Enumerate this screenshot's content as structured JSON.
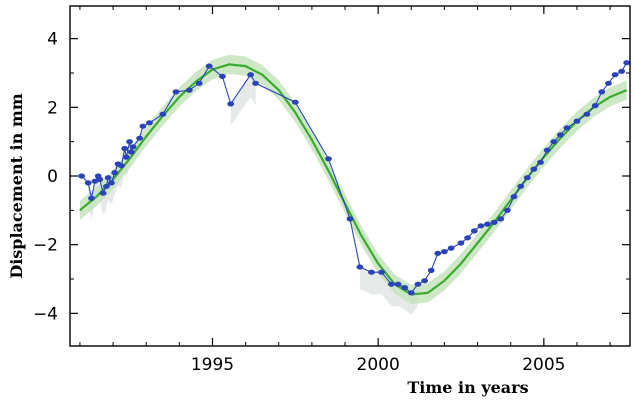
{
  "chart_data": {
    "type": "line",
    "xlabel": "Time in years",
    "ylabel": "Displacement in mm",
    "xlim": [
      1990.7,
      2007.6
    ],
    "ylim": [
      -4.95,
      4.95
    ],
    "x_ticks": [
      1995,
      2000,
      2005
    ],
    "x_tick_labels": [
      "1995",
      "2000",
      "2005"
    ],
    "y_ticks": [
      -4,
      -2,
      0,
      2,
      4
    ],
    "y_tick_labels": [
      "−4",
      "−2",
      "0",
      "2",
      "4"
    ],
    "grid": false,
    "colors": {
      "observed": "#2a44b8",
      "fit": "#3aab2c",
      "band": "#c5e4bd",
      "shadow": "#dfe5e2",
      "frame": "#000000"
    },
    "series": [
      {
        "role": "observed",
        "x": [
          1991.05,
          1991.25,
          1991.35,
          1991.45,
          1991.55,
          1991.6,
          1991.7,
          1991.8,
          1991.85,
          1991.95,
          1992.05,
          1992.15,
          1992.25,
          1992.35,
          1992.4,
          1992.5,
          1992.55,
          1992.6,
          1992.8,
          1992.9,
          1993.1,
          1993.5,
          1993.9,
          1994.3,
          1994.6,
          1994.9,
          1995.3,
          1995.55,
          1996.15,
          1996.3,
          1997.5,
          1998.5,
          1999.15,
          1999.45,
          1999.8,
          2000.1,
          2000.4,
          2000.6,
          2000.8,
          2001.0,
          2001.2,
          2001.4,
          2001.6,
          2001.8,
          2002.0,
          2002.2,
          2002.5,
          2002.7,
          2002.9,
          2003.1,
          2003.3,
          2003.5,
          2003.7,
          2003.9,
          2004.1,
          2004.3,
          2004.5,
          2004.7,
          2004.9,
          2005.1,
          2005.3,
          2005.5,
          2005.7,
          2006.0,
          2006.3,
          2006.55,
          2006.75,
          2006.95,
          2007.15,
          2007.35,
          2007.5
        ],
        "y": [
          0.0,
          -0.2,
          -0.65,
          -0.15,
          0.0,
          -0.1,
          -0.5,
          -0.3,
          -0.05,
          -0.2,
          0.1,
          0.35,
          0.3,
          0.8,
          0.55,
          1.0,
          0.7,
          0.85,
          1.1,
          1.45,
          1.55,
          1.8,
          2.45,
          2.5,
          2.7,
          3.2,
          2.9,
          2.1,
          2.95,
          2.7,
          2.15,
          0.5,
          -1.25,
          -2.65,
          -2.8,
          -2.8,
          -3.15,
          -3.15,
          -3.25,
          -3.4,
          -3.15,
          -3.05,
          -2.75,
          -2.25,
          -2.2,
          -2.1,
          -1.95,
          -1.8,
          -1.6,
          -1.45,
          -1.4,
          -1.35,
          -1.25,
          -1.0,
          -0.6,
          -0.3,
          -0.05,
          0.2,
          0.4,
          0.75,
          1.0,
          1.2,
          1.4,
          1.6,
          1.8,
          2.05,
          2.45,
          2.7,
          2.95,
          3.05,
          3.3
        ]
      },
      {
        "role": "fit",
        "x": [
          1991.0,
          1991.5,
          1992.0,
          1992.5,
          1993.0,
          1993.5,
          1994.0,
          1994.5,
          1995.0,
          1995.5,
          1996.0,
          1996.5,
          1997.0,
          1997.5,
          1998.0,
          1998.5,
          1999.0,
          1999.5,
          2000.0,
          2000.5,
          2001.0,
          2001.5,
          2002.0,
          2002.5,
          2003.0,
          2003.5,
          2004.0,
          2004.5,
          2005.0,
          2005.5,
          2006.0,
          2006.5,
          2007.0,
          2007.5
        ],
        "y": [
          -1.0,
          -0.6,
          -0.1,
          0.5,
          1.15,
          1.75,
          2.3,
          2.75,
          3.1,
          3.25,
          3.2,
          2.95,
          2.5,
          1.85,
          1.05,
          0.15,
          -0.8,
          -1.75,
          -2.55,
          -3.15,
          -3.45,
          -3.4,
          -3.05,
          -2.55,
          -1.95,
          -1.35,
          -0.7,
          -0.05,
          0.55,
          1.1,
          1.6,
          2.0,
          2.3,
          2.5
        ]
      }
    ]
  }
}
